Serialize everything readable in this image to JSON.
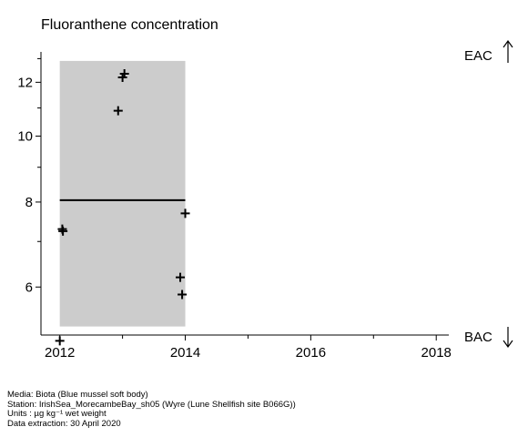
{
  "chart_data": {
    "type": "scatter",
    "title": "Fluoranthene concentration",
    "y_scale": "log",
    "xlim": [
      2011.7,
      2018.2
    ],
    "ylim": [
      5.1,
      13.3
    ],
    "x_ticks": [
      "2012",
      "2014",
      "2016",
      "2018"
    ],
    "y_ticks": [
      "6",
      "8",
      "10",
      "12"
    ],
    "points": [
      {
        "x": 2012.0,
        "y": 5.0
      },
      {
        "x": 2012.04,
        "y": 7.3
      },
      {
        "x": 2012.05,
        "y": 7.25
      },
      {
        "x": 2012.93,
        "y": 10.9
      },
      {
        "x": 2013.0,
        "y": 12.2
      },
      {
        "x": 2013.03,
        "y": 12.35
      },
      {
        "x": 2013.92,
        "y": 6.2
      },
      {
        "x": 2013.95,
        "y": 5.85
      },
      {
        "x": 2014.0,
        "y": 7.7
      }
    ],
    "confidence_band": {
      "x_start": 2012.0,
      "x_end": 2014.0,
      "y_low": 5.25,
      "y_high": 12.9,
      "color": "#cccccc"
    },
    "trend_line": {
      "x_start": 2012.0,
      "x_end": 2014.0,
      "y": 8.05
    },
    "reference_labels": {
      "upper": "EAC",
      "lower": "BAC"
    }
  },
  "metadata": {
    "media": "Media: Biota (Blue mussel soft body)",
    "station": "Station: IrishSea_MorecambeBay_sh05 (Wyre (Lune Shellfish site B066G))",
    "units": "Units : µg kg⁻¹ wet weight",
    "extraction": "Data extraction: 30 April 2020"
  }
}
